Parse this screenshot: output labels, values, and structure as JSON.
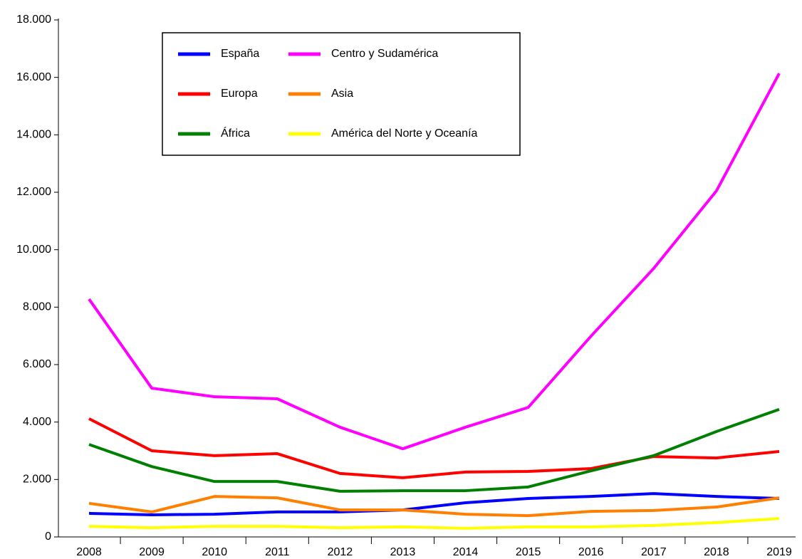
{
  "chart_data": {
    "type": "line",
    "categories": [
      "2008",
      "2009",
      "2010",
      "2011",
      "2012",
      "2013",
      "2014",
      "2015",
      "2016",
      "2017",
      "2018",
      "2019"
    ],
    "series": [
      {
        "name": "España",
        "color": "#0000ff",
        "values": [
          820,
          770,
          790,
          870,
          870,
          940,
          1190,
          1340,
          1410,
          1510,
          1410,
          1340
        ]
      },
      {
        "name": "Europa",
        "color": "#ff0000",
        "values": [
          4115,
          3000,
          2830,
          2900,
          2210,
          2060,
          2260,
          2280,
          2380,
          2800,
          2750,
          2975
        ]
      },
      {
        "name": "África",
        "color": "#008000",
        "values": [
          3220,
          2450,
          1930,
          1930,
          1590,
          1610,
          1610,
          1740,
          2300,
          2830,
          3670,
          4440
        ]
      },
      {
        "name": "Centro y Sudamérica",
        "color": "#ff00ff",
        "values": [
          8280,
          5180,
          4880,
          4810,
          3820,
          3070,
          3820,
          4510,
          6990,
          9350,
          12050,
          16140
        ]
      },
      {
        "name": "Asia",
        "color": "#ff8000",
        "values": [
          1170,
          870,
          1410,
          1360,
          940,
          940,
          790,
          740,
          890,
          920,
          1040,
          1360
        ]
      },
      {
        "name": "América del Norte y Oceanía",
        "color": "#ffff00",
        "values": [
          370,
          320,
          370,
          370,
          320,
          350,
          300,
          350,
          350,
          400,
          500,
          640
        ]
      }
    ],
    "ylim": [
      0,
      18000
    ],
    "yticks": [
      0,
      {
        "value": 2000,
        "label": "2.000"
      },
      {
        "value": 4000,
        "label": "4.000"
      },
      {
        "value": 6000,
        "label": "6.000"
      },
      {
        "value": 8000,
        "label": "8.000"
      },
      {
        "value": 10000,
        "label": "10.000"
      },
      {
        "value": 12000,
        "label": "12.000"
      },
      {
        "value": 14000,
        "label": "14.000"
      },
      {
        "value": 16000,
        "label": "16.000"
      },
      {
        "value": 18000,
        "label": "18.000"
      }
    ],
    "grid": false
  }
}
